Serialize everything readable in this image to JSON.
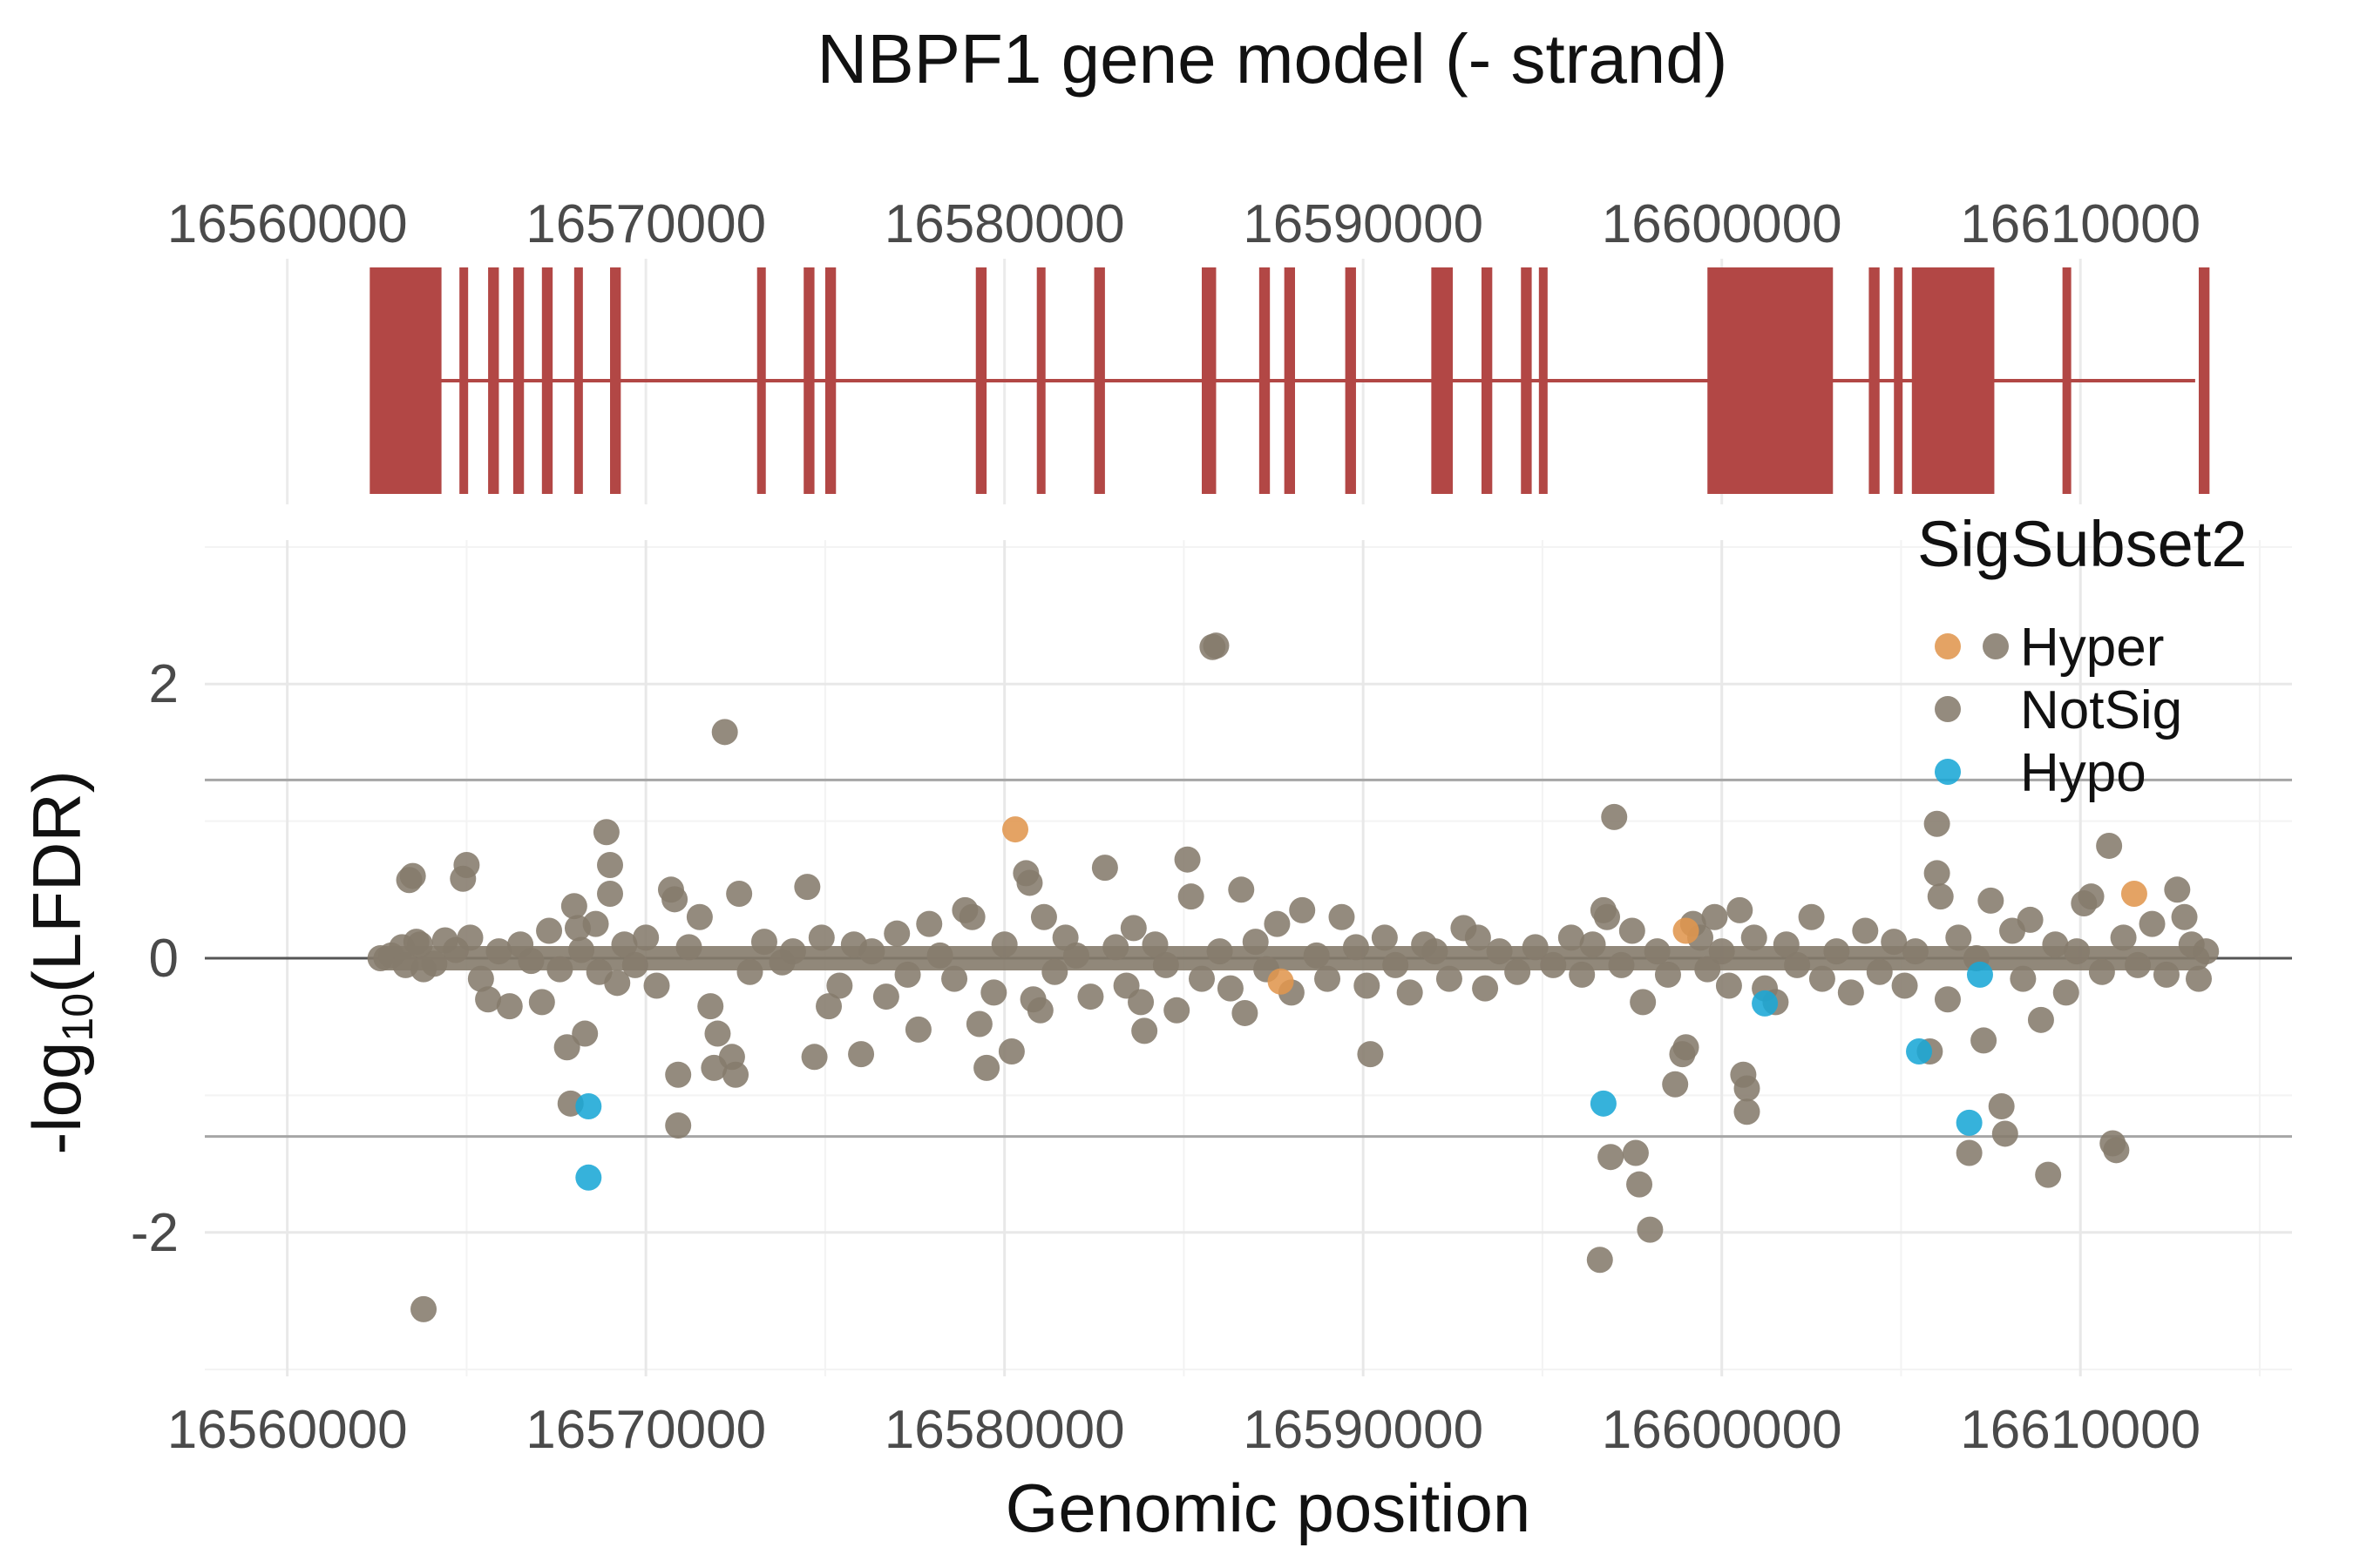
{
  "chart_data": [
    {
      "type": "gene-model",
      "title": "NBPF1 gene model (- strand)",
      "xlim": [
        16557700,
        16615900
      ],
      "x_ticks": [
        16560000,
        16570000,
        16580000,
        16590000,
        16600000,
        16610000
      ],
      "x_tick_labels": [
        "16560000",
        "16570000",
        "16580000",
        "16590000",
        "16600000",
        "16610000"
      ],
      "intron_line": [
        16564200,
        16613200
      ],
      "exons": [
        [
          16562300,
          16564300
        ],
        [
          16564800,
          16565000
        ],
        [
          16565600,
          16565900
        ],
        [
          16566300,
          16566600
        ],
        [
          16567100,
          16567400
        ],
        [
          16568000,
          16568200
        ],
        [
          16569000,
          16569300
        ],
        [
          16573100,
          16573300
        ],
        [
          16574400,
          16574700
        ],
        [
          16575000,
          16575300
        ],
        [
          16579200,
          16579500
        ],
        [
          16580900,
          16581100
        ],
        [
          16582500,
          16582800
        ],
        [
          16585500,
          16585900
        ],
        [
          16587100,
          16587400
        ],
        [
          16587800,
          16588100
        ],
        [
          16589500,
          16589800
        ],
        [
          16591900,
          16592500
        ],
        [
          16593300,
          16593600
        ],
        [
          16594400,
          16594700
        ],
        [
          16594900,
          16595100
        ],
        [
          16599600,
          16603100
        ],
        [
          16604100,
          16604400
        ],
        [
          16604800,
          16605000
        ],
        [
          16605300,
          16605500
        ],
        [
          16605400,
          16607600
        ],
        [
          16609500,
          16609700
        ],
        [
          16613300,
          16613600
        ]
      ],
      "exon_color": "#b24745"
    },
    {
      "type": "scatter",
      "xlabel": "Genomic position",
      "ylabel": "-log10(LFDR)",
      "ylabel_main": "-log",
      "ylabel_sub": "10",
      "ylabel_tail": "(LFDR)",
      "xlim": [
        16557700,
        16615900
      ],
      "ylim": [
        -3.05,
        3.05
      ],
      "x_ticks": [
        16560000,
        16570000,
        16580000,
        16590000,
        16600000,
        16610000
      ],
      "x_tick_labels": [
        "16560000",
        "16570000",
        "16580000",
        "16590000",
        "16600000",
        "16610000"
      ],
      "y_ticks": [
        -2,
        0,
        2
      ],
      "y_tick_labels": [
        "-2",
        "0",
        "2"
      ],
      "threshold_lines": [
        1.3,
        -1.3
      ],
      "grid": true,
      "legend": {
        "title": "SigSubset2",
        "position": "top-right",
        "entries": [
          {
            "label": "Hyper",
            "color": "#e0964e"
          },
          {
            "label": "NotSig",
            "color": "#857b6c"
          },
          {
            "label": "Hypo",
            "color": "#1aa7d6"
          }
        ]
      },
      "series": [
        {
          "name": "NotSig",
          "color": "#857b6c",
          "points": [
            [
              16562600,
              0.0
            ],
            [
              16562900,
              0.02
            ],
            [
              16563200,
              0.08
            ],
            [
              16563300,
              -0.05
            ],
            [
              16563400,
              0.57
            ],
            [
              16563500,
              0.6
            ],
            [
              16563600,
              0.12
            ],
            [
              16563700,
              0.1
            ],
            [
              16563800,
              -0.08
            ],
            [
              16563800,
              -2.56
            ],
            [
              16564100,
              -0.04
            ],
            [
              16564400,
              0.13
            ],
            [
              16564700,
              0.06
            ],
            [
              16564900,
              0.58
            ],
            [
              16565000,
              0.68
            ],
            [
              16565100,
              0.15
            ],
            [
              16565400,
              -0.15
            ],
            [
              16565600,
              -0.3
            ],
            [
              16565900,
              0.05
            ],
            [
              16566200,
              -0.35
            ],
            [
              16566500,
              0.1
            ],
            [
              16566800,
              -0.02
            ],
            [
              16567100,
              -0.32
            ],
            [
              16567300,
              0.2
            ],
            [
              16567600,
              -0.08
            ],
            [
              16567800,
              -0.65
            ],
            [
              16567900,
              -1.06
            ],
            [
              16568000,
              0.38
            ],
            [
              16568100,
              0.22
            ],
            [
              16568200,
              0.06
            ],
            [
              16568300,
              -0.55
            ],
            [
              16568600,
              0.25
            ],
            [
              16568700,
              -0.1
            ],
            [
              16568900,
              0.92
            ],
            [
              16569000,
              0.68
            ],
            [
              16569000,
              0.47
            ],
            [
              16569200,
              -0.18
            ],
            [
              16569400,
              0.1
            ],
            [
              16569700,
              -0.05
            ],
            [
              16570000,
              0.15
            ],
            [
              16570300,
              -0.2
            ],
            [
              16570700,
              0.5
            ],
            [
              16570800,
              0.43
            ],
            [
              16570900,
              -0.85
            ],
            [
              16570900,
              -1.22
            ],
            [
              16571200,
              0.08
            ],
            [
              16571500,
              0.3
            ],
            [
              16571800,
              -0.35
            ],
            [
              16571900,
              -0.8
            ],
            [
              16572000,
              -0.55
            ],
            [
              16572200,
              1.65
            ],
            [
              16572400,
              -0.72
            ],
            [
              16572500,
              -0.85
            ],
            [
              16572600,
              0.47
            ],
            [
              16572900,
              -0.1
            ],
            [
              16573300,
              0.12
            ],
            [
              16573800,
              -0.03
            ],
            [
              16574100,
              0.05
            ],
            [
              16574500,
              0.52
            ],
            [
              16574700,
              -0.72
            ],
            [
              16574900,
              0.15
            ],
            [
              16575100,
              -0.35
            ],
            [
              16575400,
              -0.2
            ],
            [
              16575800,
              0.1
            ],
            [
              16576000,
              -0.7
            ],
            [
              16576300,
              0.05
            ],
            [
              16576700,
              -0.28
            ],
            [
              16577000,
              0.18
            ],
            [
              16577300,
              -0.12
            ],
            [
              16577600,
              -0.52
            ],
            [
              16577900,
              0.25
            ],
            [
              16578200,
              0.02
            ],
            [
              16578600,
              -0.15
            ],
            [
              16578900,
              0.35
            ],
            [
              16579100,
              0.3
            ],
            [
              16579300,
              -0.48
            ],
            [
              16579500,
              -0.8
            ],
            [
              16579700,
              -0.25
            ],
            [
              16580000,
              0.1
            ],
            [
              16580200,
              -0.68
            ],
            [
              16580600,
              0.62
            ],
            [
              16580700,
              0.55
            ],
            [
              16580800,
              -0.3
            ],
            [
              16581000,
              -0.38
            ],
            [
              16581100,
              0.3
            ],
            [
              16581400,
              -0.1
            ],
            [
              16581700,
              0.15
            ],
            [
              16582000,
              0.02
            ],
            [
              16582400,
              -0.28
            ],
            [
              16582800,
              0.66
            ],
            [
              16583100,
              0.08
            ],
            [
              16583400,
              -0.2
            ],
            [
              16583600,
              0.22
            ],
            [
              16583800,
              -0.32
            ],
            [
              16583900,
              -0.53
            ],
            [
              16584200,
              0.1
            ],
            [
              16584500,
              -0.05
            ],
            [
              16584800,
              -0.38
            ],
            [
              16585100,
              0.72
            ],
            [
              16585200,
              0.45
            ],
            [
              16585500,
              -0.15
            ],
            [
              16585800,
              2.27
            ],
            [
              16585900,
              2.28
            ],
            [
              16586000,
              0.05
            ],
            [
              16586300,
              -0.22
            ],
            [
              16586600,
              0.5
            ],
            [
              16586700,
              -0.4
            ],
            [
              16587000,
              0.12
            ],
            [
              16587300,
              -0.08
            ],
            [
              16587600,
              0.25
            ],
            [
              16588000,
              -0.25
            ],
            [
              16588300,
              0.35
            ],
            [
              16588700,
              0.02
            ],
            [
              16589000,
              -0.15
            ],
            [
              16589400,
              0.3
            ],
            [
              16589800,
              0.08
            ],
            [
              16590100,
              -0.2
            ],
            [
              16590200,
              -0.7
            ],
            [
              16590600,
              0.15
            ],
            [
              16590900,
              -0.05
            ],
            [
              16591300,
              -0.25
            ],
            [
              16591700,
              0.1
            ],
            [
              16592000,
              0.05
            ],
            [
              16592400,
              -0.15
            ],
            [
              16592800,
              0.22
            ],
            [
              16593200,
              0.15
            ],
            [
              16593400,
              -0.22
            ],
            [
              16593800,
              0.05
            ],
            [
              16594300,
              -0.1
            ],
            [
              16594800,
              0.08
            ],
            [
              16595300,
              -0.05
            ],
            [
              16595800,
              0.15
            ],
            [
              16596100,
              -0.12
            ],
            [
              16596400,
              0.1
            ],
            [
              16596600,
              -2.2
            ],
            [
              16596700,
              0.35
            ],
            [
              16596800,
              0.3
            ],
            [
              16596900,
              -1.45
            ],
            [
              16597000,
              1.03
            ],
            [
              16597200,
              -0.05
            ],
            [
              16597500,
              0.2
            ],
            [
              16597600,
              -1.42
            ],
            [
              16597700,
              -1.65
            ],
            [
              16597800,
              -0.32
            ],
            [
              16598000,
              -1.98
            ],
            [
              16598200,
              0.05
            ],
            [
              16598500,
              -0.12
            ],
            [
              16598700,
              -0.92
            ],
            [
              16598900,
              -0.7
            ],
            [
              16599000,
              -0.65
            ],
            [
              16599200,
              0.25
            ],
            [
              16599400,
              0.15
            ],
            [
              16599600,
              -0.08
            ],
            [
              16599800,
              0.3
            ],
            [
              16600000,
              0.05
            ],
            [
              16600200,
              -0.2
            ],
            [
              16600500,
              0.35
            ],
            [
              16600600,
              -0.85
            ],
            [
              16600700,
              -0.95
            ],
            [
              16600700,
              -1.12
            ],
            [
              16600900,
              0.15
            ],
            [
              16601200,
              -0.22
            ],
            [
              16601500,
              -0.32
            ],
            [
              16601800,
              0.1
            ],
            [
              16602100,
              -0.05
            ],
            [
              16602500,
              0.3
            ],
            [
              16602800,
              -0.15
            ],
            [
              16603200,
              0.05
            ],
            [
              16603600,
              -0.25
            ],
            [
              16604000,
              0.2
            ],
            [
              16604400,
              -0.1
            ],
            [
              16604800,
              0.12
            ],
            [
              16605100,
              -0.2
            ],
            [
              16605400,
              0.05
            ],
            [
              16605800,
              -0.68
            ],
            [
              16606000,
              0.98
            ],
            [
              16606000,
              0.62
            ],
            [
              16606100,
              0.45
            ],
            [
              16606300,
              -0.3
            ],
            [
              16606600,
              0.15
            ],
            [
              16606900,
              -1.42
            ],
            [
              16607100,
              0.0
            ],
            [
              16607300,
              -0.6
            ],
            [
              16607500,
              0.42
            ],
            [
              16607800,
              -1.08
            ],
            [
              16607900,
              -1.28
            ],
            [
              16608100,
              0.2
            ],
            [
              16608400,
              -0.15
            ],
            [
              16608600,
              0.28
            ],
            [
              16608900,
              -0.45
            ],
            [
              16609100,
              -1.58
            ],
            [
              16609300,
              0.1
            ],
            [
              16609600,
              -0.25
            ],
            [
              16609900,
              0.05
            ],
            [
              16610100,
              0.4
            ],
            [
              16610300,
              0.45
            ],
            [
              16610600,
              -0.1
            ],
            [
              16610800,
              0.82
            ],
            [
              16610900,
              -1.35
            ],
            [
              16611000,
              -1.4
            ],
            [
              16611200,
              0.15
            ],
            [
              16611600,
              -0.05
            ],
            [
              16612000,
              0.25
            ],
            [
              16612400,
              -0.12
            ],
            [
              16612700,
              0.5
            ],
            [
              16612900,
              0.3
            ],
            [
              16613100,
              0.1
            ],
            [
              16613300,
              -0.15
            ],
            [
              16613500,
              0.05
            ]
          ]
        },
        {
          "name": "Hyper",
          "color": "#e0964e",
          "points": [
            [
              16580300,
              0.94
            ],
            [
              16587700,
              -0.17
            ],
            [
              16599000,
              0.2
            ],
            [
              16611500,
              0.47
            ]
          ]
        },
        {
          "name": "Hypo",
          "color": "#1aa7d6",
          "points": [
            [
              16568400,
              -1.08
            ],
            [
              16568400,
              -1.6
            ],
            [
              16596700,
              -1.06
            ],
            [
              16601200,
              -0.33
            ],
            [
              16605500,
              -0.68
            ],
            [
              16606900,
              -1.2
            ],
            [
              16607200,
              -0.12
            ]
          ]
        }
      ]
    }
  ]
}
